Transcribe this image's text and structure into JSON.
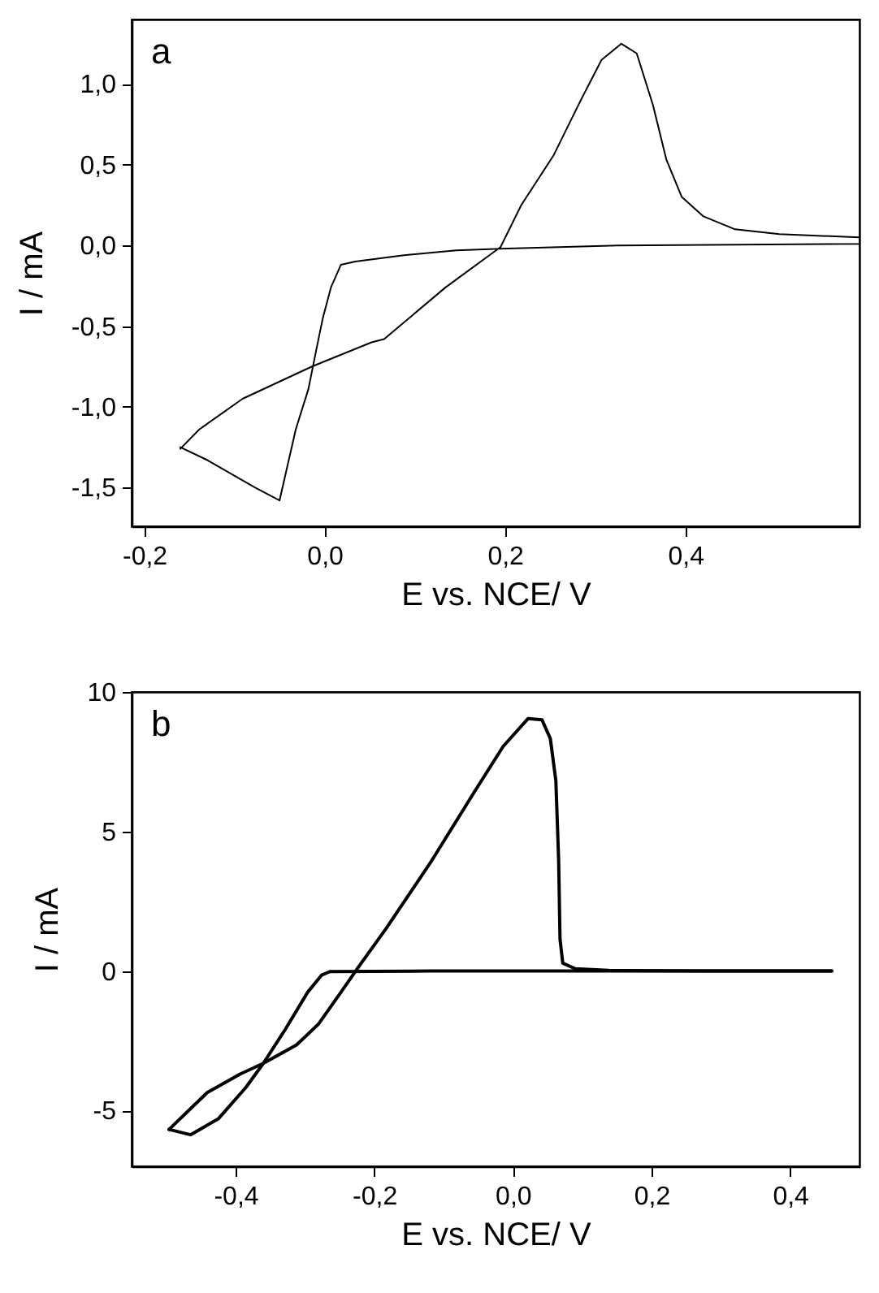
{
  "chart_data": [
    {
      "type": "line",
      "xlabel": "E vs. NCE/ V",
      "ylabel": "I / mA",
      "annotations": [
        "a"
      ],
      "xlim": [
        -0.214,
        0.593
      ],
      "ylim": [
        -1.74,
        1.4
      ],
      "xticks": [
        {
          "value": -0.2,
          "label": "-0,2"
        },
        {
          "value": 0,
          "label": "0,0"
        },
        {
          "value": 0.2,
          "label": "0,2"
        },
        {
          "value": 0.4,
          "label": "0,4"
        }
      ],
      "yticks": [
        {
          "value": -1.5,
          "label": "-1,5"
        },
        {
          "value": -1,
          "label": "-1,0"
        },
        {
          "value": -0.5,
          "label": "-0,5"
        },
        {
          "value": 0,
          "label": "0,0"
        },
        {
          "value": 0.5,
          "label": "0,5"
        },
        {
          "value": 1,
          "label": "1,0"
        }
      ],
      "series": [
        {
          "color": "#000000",
          "x": [
            -0.16,
            -0.139,
            -0.091,
            -0.014,
            0.052,
            0.066,
            0.134,
            0.195,
            0.218,
            0.254,
            0.284,
            0.307,
            0.329,
            0.346,
            0.364,
            0.379,
            0.396,
            0.42,
            0.455,
            0.504,
            0.593,
            0.593,
            0.325,
            0.195,
            0.146,
            0.088,
            0.034,
            0.018,
            0.007,
            -0.002,
            -0.009,
            -0.018,
            -0.032,
            -0.05,
            -0.077,
            -0.13,
            -0.16
          ],
          "values": [
            -1.26,
            -1.14,
            -0.95,
            -0.75,
            -0.6,
            -0.58,
            -0.26,
            -0.01,
            0.25,
            0.56,
            0.9,
            1.15,
            1.25,
            1.19,
            0.87,
            0.53,
            0.3,
            0.18,
            0.1,
            0.07,
            0.05,
            0.01,
            0,
            -0.02,
            -0.03,
            -0.06,
            -0.1,
            -0.12,
            -0.26,
            -0.45,
            -0.64,
            -0.89,
            -1.14,
            -1.58,
            -1.5,
            -1.33,
            -1.25
          ]
        }
      ]
    },
    {
      "type": "line",
      "xlabel": "E vs. NCE/ V",
      "ylabel": "I / mA",
      "annotations": [
        "b"
      ],
      "xlim": [
        -0.55,
        0.5
      ],
      "ylim": [
        -7,
        10
      ],
      "xticks": [
        {
          "value": -0.4,
          "label": "-0,4"
        },
        {
          "value": -0.2,
          "label": "-0,2"
        },
        {
          "value": 0,
          "label": "0,0"
        },
        {
          "value": 0.2,
          "label": "0,2"
        },
        {
          "value": 0.4,
          "label": "0,4"
        }
      ],
      "yticks": [
        -5,
        0,
        5,
        10
      ],
      "series": [
        {
          "color": "#000000",
          "x": [
            -0.496,
            -0.441,
            -0.393,
            -0.36,
            -0.312,
            -0.28,
            -0.248,
            -0.224,
            -0.183,
            -0.119,
            -0.055,
            -0.014,
            0.022,
            0.042,
            0.054,
            0.062,
            0.066,
            0.068,
            0.072,
            0.09,
            0.138,
            0.283,
            0.46
          ],
          "values": [
            -5.68,
            -4.36,
            -3.69,
            -3.31,
            -2.65,
            -1.89,
            -0.76,
            0.1,
            1.52,
            3.88,
            6.44,
            8.05,
            9.05,
            9.0,
            8.33,
            6.82,
            3.98,
            1.14,
            0.28,
            0.08,
            0.02,
            0,
            0
          ]
        },
        {
          "color": "#000000",
          "x": [
            0.46,
            0.122,
            -0.119,
            -0.264,
            -0.276,
            -0.296,
            -0.328,
            -0.36,
            -0.385,
            -0.425,
            -0.465,
            -0.496
          ],
          "values": [
            0,
            0,
            0,
            -0.02,
            -0.15,
            -0.76,
            -2.08,
            -3.31,
            -4.17,
            -5.3,
            -5.87,
            -5.68
          ]
        }
      ]
    }
  ]
}
